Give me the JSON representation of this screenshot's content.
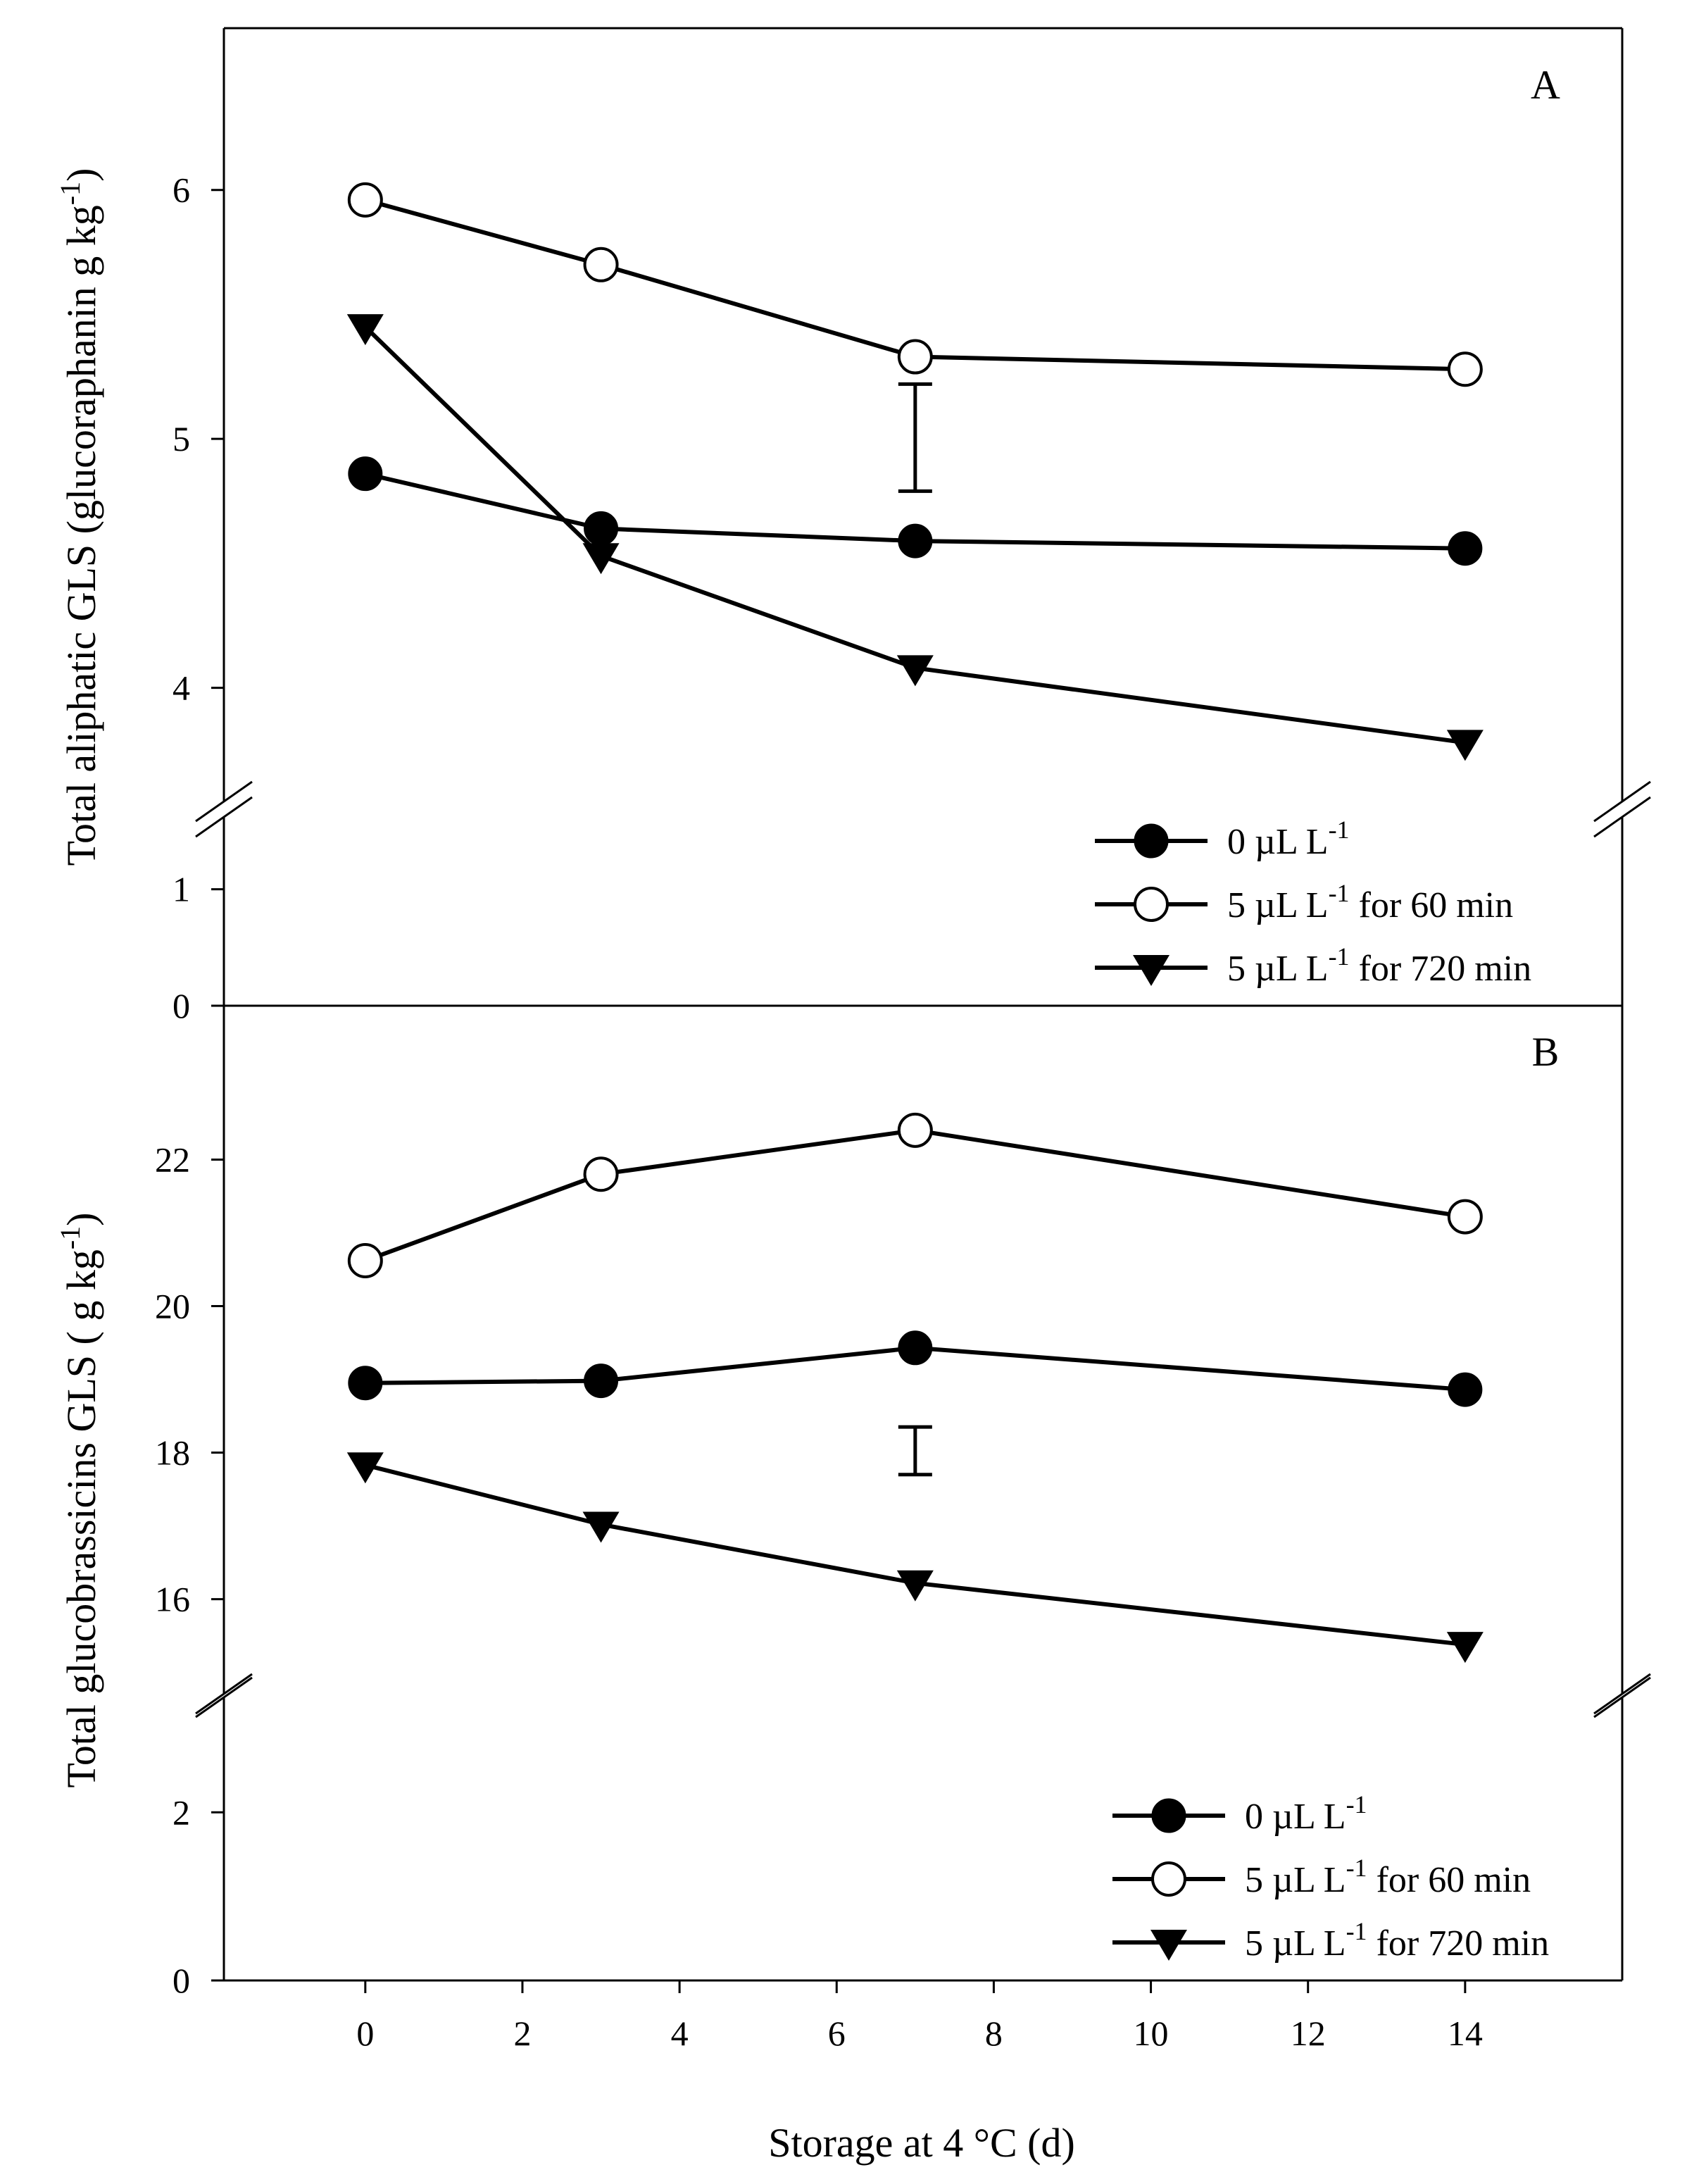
{
  "figure": {
    "x_label": "Storage at 4 °C (d)"
  },
  "chart_data": [
    {
      "type": "line",
      "panel": "A",
      "ylabel_prefix": "Total aliphatic GLS (glucoraphanin g kg",
      "ylabel_sup": "-1",
      "ylabel_suffix": ")",
      "xlim": [
        -1.8,
        16
      ],
      "xticks": [
        0,
        2,
        4,
        6,
        8,
        10,
        12,
        14
      ],
      "ylim_lower": [
        0,
        1.5
      ],
      "ylim_upper": [
        3.6,
        6.65
      ],
      "yticks_lower": [
        0,
        1
      ],
      "yticks_upper": [
        4,
        5,
        6
      ],
      "axis_break": true,
      "legend_position": "bottom-right",
      "error_bar": {
        "x": 7,
        "low": 4.79,
        "high": 5.22
      },
      "x": [
        0,
        3,
        7,
        14
      ],
      "series": [
        {
          "name": "0 µL L",
          "sup": "-1",
          "suffix": "",
          "marker": "filled-circle",
          "values": [
            4.86,
            4.64,
            4.59,
            4.56
          ]
        },
        {
          "name": "5 µL L",
          "sup": "-1",
          "suffix": " for 60 min",
          "marker": "open-circle",
          "values": [
            5.96,
            5.7,
            5.33,
            5.28
          ]
        },
        {
          "name": "5 µL L",
          "sup": "-1",
          "suffix": " for 720 min",
          "marker": "filled-triangle-down",
          "values": [
            5.45,
            4.53,
            4.08,
            3.78
          ]
        }
      ]
    },
    {
      "type": "line",
      "panel": "B",
      "ylabel_prefix": "Total glucobrassicins GLS ( g kg",
      "ylabel_sup": "-1",
      "ylabel_suffix": ")",
      "xlim": [
        -1.8,
        16
      ],
      "xticks": [
        0,
        2,
        4,
        6,
        8,
        10,
        12,
        14
      ],
      "ylim_lower": [
        0,
        3.2
      ],
      "ylim_upper": [
        14.9,
        24.1
      ],
      "yticks_lower": [
        0,
        2
      ],
      "yticks_upper": [
        16,
        18,
        20,
        22
      ],
      "axis_break": true,
      "legend_position": "bottom-right",
      "error_bar": {
        "x": 7,
        "low": 17.7,
        "high": 18.35
      },
      "x": [
        0,
        3,
        7,
        14
      ],
      "series": [
        {
          "name": "0 µL L",
          "sup": "-1",
          "suffix": "",
          "marker": "filled-circle",
          "values": [
            18.95,
            18.98,
            19.43,
            18.86
          ]
        },
        {
          "name": "5 µL L",
          "sup": "-1",
          "suffix": " for 60 min",
          "marker": "open-circle",
          "values": [
            20.62,
            21.8,
            22.4,
            21.22
          ]
        },
        {
          "name": "5 µL L",
          "sup": "-1",
          "suffix": " for 720 min",
          "marker": "filled-triangle-down",
          "values": [
            17.83,
            17.02,
            16.22,
            15.38
          ]
        }
      ]
    }
  ]
}
